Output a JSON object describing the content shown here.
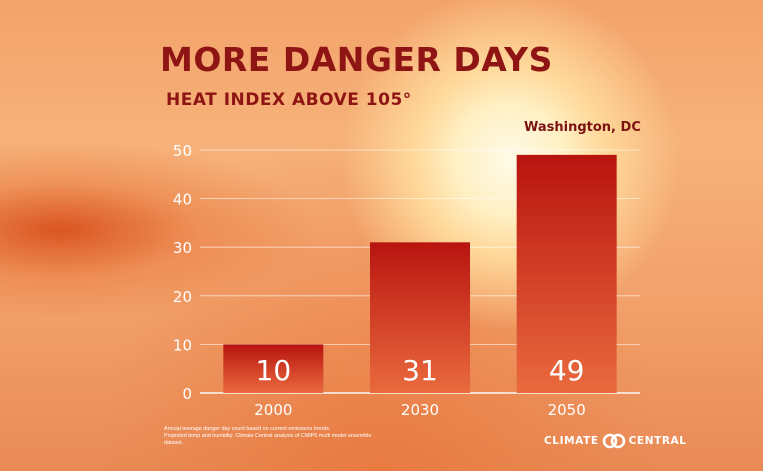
{
  "header": {
    "title": "MORE DANGER DAYS",
    "subtitle": "HEAT INDEX ABOVE 105°",
    "location": "Washington, DC"
  },
  "chart_data": {
    "type": "bar",
    "categories": [
      "2000",
      "2030",
      "2050"
    ],
    "values": [
      10,
      31,
      49
    ],
    "data_labels": [
      "10",
      "31",
      "49"
    ],
    "yticks": [
      "0",
      "10",
      "20",
      "30",
      "40",
      "50"
    ],
    "ylim": [
      0,
      50
    ],
    "grid": true,
    "xlabel": "",
    "ylabel": "",
    "colors": {
      "bar_top": "#b8140f",
      "bar_bottom": "#ea6a3e",
      "grid": "#ffffff",
      "label": "#ffffff"
    }
  },
  "footnote": {
    "line1": "Annual average danger day count based on current emissions trends.",
    "line2": "Projected temp and humidity: Climate Central analysis of CMIP5 multi model ensemble",
    "line3": "dataset."
  },
  "logo": {
    "left_text": "CLIMATE",
    "right_text": "CENTRAL"
  }
}
